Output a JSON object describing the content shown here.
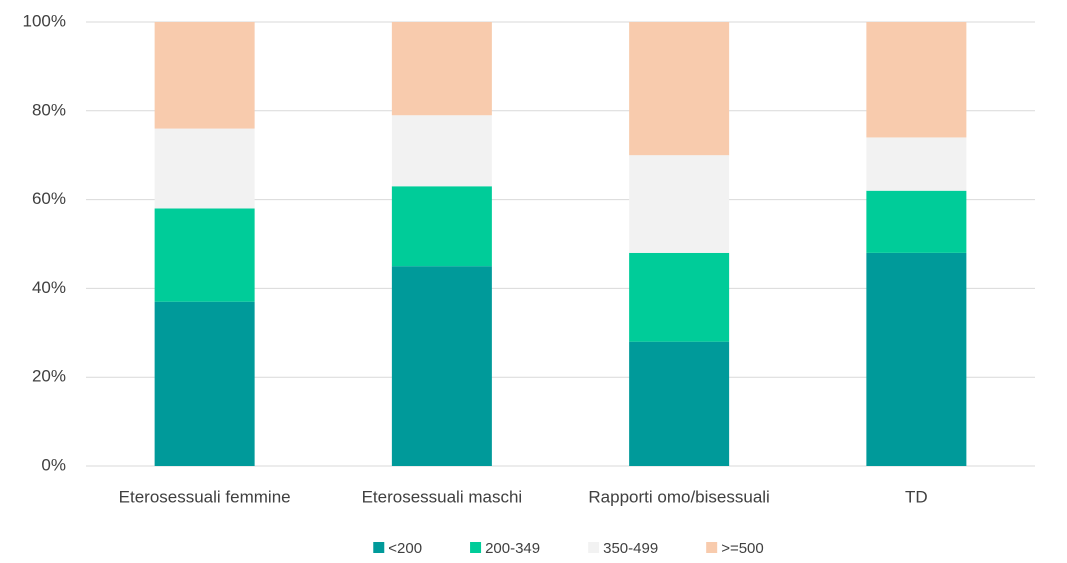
{
  "chart_data": {
    "type": "stacked_bar",
    "categories": [
      "Eterosessuali femmine",
      "Eterosessuali maschi",
      "Rapporti omo/bisessuali",
      "TD"
    ],
    "series": [
      {
        "name": "<200",
        "color": "#009a9a",
        "values": [
          37,
          45,
          28,
          48
        ]
      },
      {
        "name": "200-349",
        "color": "#00cc99",
        "values": [
          21,
          18,
          20,
          14
        ]
      },
      {
        "name": "350-499",
        "color": "#f2f2f2",
        "values": [
          18,
          16,
          22,
          12
        ]
      },
      {
        "name": ">=500",
        "color": "#f8cbad",
        "values": [
          24,
          21,
          30,
          26
        ]
      }
    ],
    "ylim": [
      0,
      100
    ],
    "yticks": [
      {
        "value": 0,
        "label": "0%"
      },
      {
        "value": 20,
        "label": "20%"
      },
      {
        "value": 40,
        "label": "40%"
      },
      {
        "value": 60,
        "label": "60%"
      },
      {
        "value": 80,
        "label": "80%"
      },
      {
        "value": 100,
        "label": "100%"
      }
    ],
    "grid": true,
    "legend": "bottom"
  }
}
